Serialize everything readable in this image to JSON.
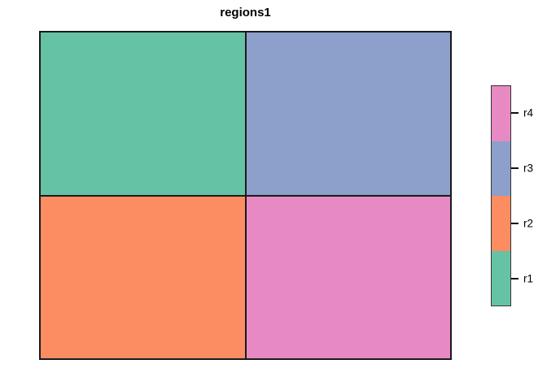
{
  "chart_data": {
    "type": "heatmap",
    "title": "regions1",
    "description": "2x2 categorical raster map with black cell borders, no axes or tick labels",
    "grid_rows": [
      [
        "r1",
        "r3"
      ],
      [
        "r2",
        "r4"
      ]
    ],
    "categories": [
      "r1",
      "r2",
      "r3",
      "r4"
    ],
    "palette": {
      "r1": "#66C2A5",
      "r2": "#FC8D62",
      "r3": "#8DA0CB",
      "r4": "#E78AC3"
    },
    "legend": {
      "position": "right",
      "style": "vertical-colorbar",
      "entries_top_to_bottom": [
        "r4",
        "r3",
        "r2",
        "r1"
      ]
    },
    "axes": "none",
    "grid": "off",
    "border_color": "#1a1a1a",
    "background_color": "#ffffff"
  }
}
